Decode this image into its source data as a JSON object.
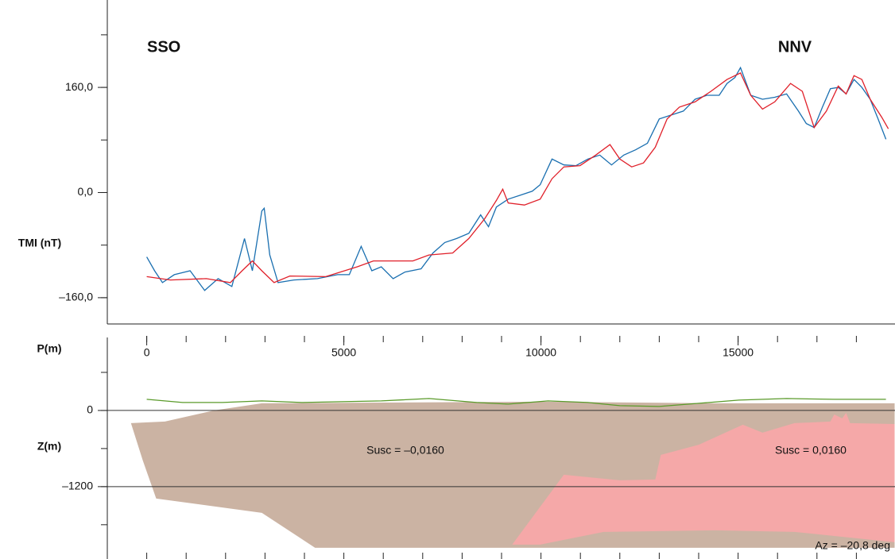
{
  "chart_data": [
    {
      "type": "line",
      "ylabel": "TMI (nT)",
      "xlabel": "P(m)",
      "annotations": [
        "SSO",
        "NNV"
      ],
      "xlim": [
        -1000,
        18980
      ],
      "ylim": [
        -200,
        293
      ],
      "xticks": [
        0,
        5000,
        10000,
        15000
      ],
      "xminorticks": [
        0,
        1000,
        2000,
        3000,
        4000,
        5000,
        6000,
        7000,
        8000,
        9000,
        10000,
        11000,
        12000,
        13000,
        14000,
        15000,
        16000,
        17000,
        18000
      ],
      "yticks": [
        {
          "value": 160,
          "label": "160,0"
        },
        {
          "value": 0,
          "label": "0,0"
        },
        {
          "value": -160,
          "label": "–160,0"
        }
      ],
      "yminorticks": [
        240,
        160,
        80,
        0,
        -80,
        -160
      ],
      "series": [
        {
          "color": "#1a6fb0",
          "x": [
            0,
            200,
            400,
            700,
            1100,
            1470,
            1810,
            2160,
            2480,
            2680,
            2920,
            2980,
            3120,
            3330,
            3730,
            4330,
            4840,
            5140,
            5440,
            5710,
            5950,
            6250,
            6550,
            6960,
            7260,
            7560,
            7860,
            8170,
            8470,
            8670,
            8870,
            9170,
            9480,
            9780,
            9980,
            10280,
            10580,
            10890,
            11190,
            11490,
            11790,
            12100,
            12400,
            12700,
            13000,
            13310,
            13610,
            13910,
            14210,
            14520,
            14720,
            14920,
            15060,
            15320,
            15620,
            15930,
            16230,
            16530,
            16730,
            16930,
            17140,
            17340,
            17540,
            17740,
            17940,
            18140,
            18350,
            18550,
            18750
          ],
          "values": [
            -98,
            -119,
            -137,
            -125,
            -119,
            -149,
            -131,
            -143,
            -70,
            -119,
            -28,
            -24,
            -95,
            -137,
            -133,
            -131,
            -125,
            -125,
            -82,
            -119,
            -113,
            -131,
            -121,
            -116,
            -92,
            -76,
            -70,
            -62,
            -34,
            -52,
            -22,
            -10,
            -4,
            2,
            12,
            51,
            42,
            41,
            51,
            57,
            42,
            57,
            65,
            75,
            112,
            118,
            124,
            142,
            148,
            148,
            166,
            175,
            190,
            148,
            142,
            145,
            150,
            124,
            105,
            99,
            130,
            158,
            160,
            150,
            172,
            160,
            142,
            112,
            81
          ]
        },
        {
          "color": "#e0202a",
          "x": [
            0,
            600,
            1510,
            2120,
            2420,
            2680,
            2920,
            3230,
            3630,
            4540,
            5340,
            5750,
            6750,
            7160,
            7760,
            8170,
            8570,
            8870,
            9030,
            9170,
            9580,
            9980,
            10280,
            10580,
            10990,
            11390,
            11750,
            12000,
            12300,
            12600,
            12900,
            13200,
            13510,
            13910,
            14310,
            14720,
            15060,
            15320,
            15620,
            15930,
            16330,
            16630,
            16930,
            17240,
            17540,
            17740,
            17940,
            18140,
            18350,
            18650,
            18810
          ],
          "values": [
            -128,
            -133,
            -131,
            -137,
            -119,
            -104,
            -119,
            -137,
            -127,
            -128,
            -113,
            -104,
            -104,
            -95,
            -92,
            -70,
            -40,
            -12,
            5,
            -16,
            -19,
            -10,
            21,
            39,
            41,
            57,
            73,
            51,
            39,
            45,
            69,
            112,
            130,
            138,
            154,
            172,
            182,
            148,
            127,
            138,
            166,
            154,
            99,
            124,
            162,
            150,
            178,
            172,
            142,
            114,
            97
          ]
        }
      ]
    },
    {
      "type": "section",
      "ylabel": "Z(m)",
      "annotations": [
        "Az = –20,8 deg"
      ],
      "xlim": [
        -1000,
        18980
      ],
      "ylim": [
        -2340,
        1150
      ],
      "xminorticks": [
        0,
        1000,
        2000,
        3000,
        4000,
        5000,
        6000,
        7000,
        8000,
        9000,
        10000,
        11000,
        12000,
        13000,
        14000,
        15000,
        16000,
        17000,
        18000
      ],
      "yticks": [
        0,
        {
          "value": -1200,
          "label": "–1200"
        }
      ],
      "yminorticks": [
        600,
        0,
        -600,
        -1200,
        -1800
      ],
      "grid": true,
      "bodies": [
        {
          "label": "Susc = –0,0160",
          "color": "#cbb3a3",
          "x": [
            -400,
            460,
            1710,
            2920,
            9980,
            14420,
            18970,
            18970,
            4270,
            2920,
            240,
            -100
          ],
          "z": [
            -200,
            -175,
            0,
            113,
            138,
            113,
            113,
            -2163,
            -2163,
            -1613,
            -1388,
            -788
          ]
        },
        {
          "label": "Susc = 0,0160",
          "color": "#f5a8a8",
          "x": [
            9270,
            10580,
            12000,
            12900,
            13040,
            14010,
            15120,
            15620,
            16430,
            17340,
            17440,
            17640,
            17740,
            17840,
            18970,
            18970,
            16430,
            14420,
            11590,
            9980
          ],
          "z": [
            -2113,
            -1013,
            -1100,
            -1088,
            -700,
            -538,
            -225,
            -350,
            -200,
            -175,
            -63,
            -125,
            -38,
            -200,
            -213,
            -2075,
            -1913,
            -1888,
            -1913,
            -2113
          ]
        }
      ],
      "series": [
        {
          "color": "#5a9a2a",
          "x": [
            0,
            910,
            1920,
            2920,
            3930,
            4940,
            5950,
            7160,
            8370,
            9170,
            10180,
            11190,
            12000,
            13000,
            14010,
            15020,
            16230,
            17440,
            18750
          ],
          "values": [
            175,
            125,
            125,
            150,
            125,
            138,
            150,
            188,
            125,
            100,
            150,
            125,
            75,
            63,
            113,
            163,
            188,
            175,
            175
          ]
        }
      ]
    }
  ]
}
